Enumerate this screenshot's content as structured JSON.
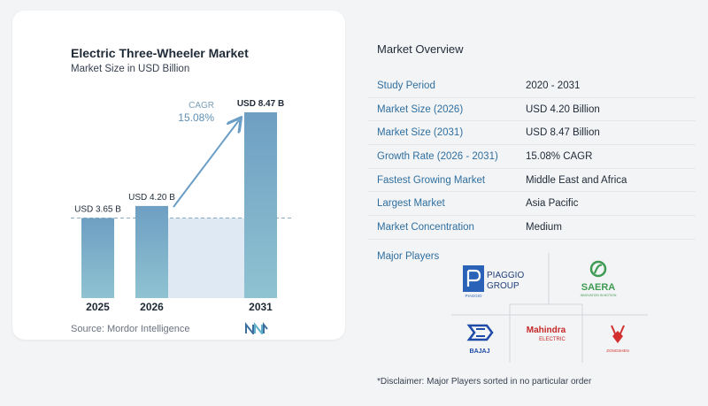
{
  "chart_data": {
    "type": "bar",
    "title": "Electric Three-Wheeler Market",
    "subtitle": "Market Size in USD Billion",
    "categories": [
      "2025",
      "2026",
      "2031"
    ],
    "values": [
      3.65,
      4.2,
      8.47
    ],
    "value_labels": [
      "USD 3.65 B",
      "USD 4.20 B",
      "USD 8.47 B"
    ],
    "cagr_label": "CAGR",
    "cagr_value": "15.08%",
    "ylim": [
      0,
      8.47
    ],
    "colors": {
      "bar": "#6e9fc3",
      "bar_bottom": "#8fc3d1",
      "shade": "#dfe9f3",
      "arrow": "#6a9ec6"
    }
  },
  "source": "Source:  Mordor Intelligence",
  "overview": {
    "title": "Market Overview",
    "rows": [
      {
        "key": "Study Period",
        "value": "2020 - 2031"
      },
      {
        "key": "Market Size (2026)",
        "value": "USD 4.20 Billion"
      },
      {
        "key": "Market Size (2031)",
        "value": "USD 8.47 Billion"
      },
      {
        "key": "Growth Rate (2026 - 2031)",
        "value": "15.08% CAGR"
      },
      {
        "key": "Fastest Growing Market",
        "value": "Middle East and Africa"
      },
      {
        "key": "Largest Market",
        "value": "Asia Pacific"
      },
      {
        "key": "Market Concentration",
        "value": "Medium"
      }
    ]
  },
  "players": {
    "title": "Major Players",
    "piaggio_line1": "PIAGGIO",
    "piaggio_line2": "GROUP",
    "piaggio_badge": "PIAGGIO",
    "saera": "SAERA",
    "saera_tag": "INNOVATION IN MOTION",
    "mahindra_line1": "Mahindra",
    "mahindra_line2": "ELECTRIC",
    "bajaj": "BAJAJ",
    "zongshen": "ZONGSHEN"
  },
  "disclaimer": "*Disclaimer: Major Players sorted in no particular order"
}
